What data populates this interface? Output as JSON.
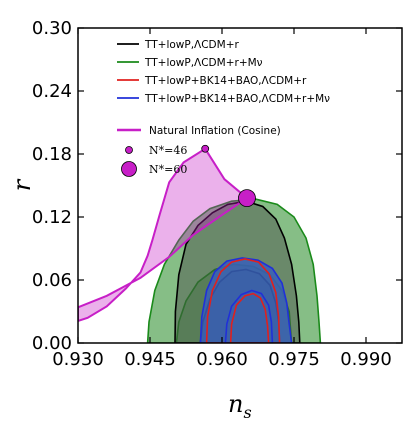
{
  "chart_data": {
    "type": "area",
    "xlabel": "n_s",
    "ylabel": "r",
    "xlim": [
      0.93,
      0.9975
    ],
    "ylim": [
      0.0,
      0.3
    ],
    "xticks": [
      "0.930",
      "0.945",
      "0.960",
      "0.975",
      "0.990"
    ],
    "xtick_values": [
      0.93,
      0.945,
      0.96,
      0.975,
      0.99
    ],
    "yticks": [
      "0.00",
      "0.06",
      "0.12",
      "0.18",
      "0.24",
      "0.30"
    ],
    "ytick_values": [
      0.0,
      0.06,
      0.12,
      0.18,
      0.24,
      0.3
    ],
    "grid": false,
    "legend_position": "top-left",
    "legend": [
      {
        "label": "TT+lowP,ΛCDM+r",
        "color": "#000000"
      },
      {
        "label": "TT+lowP,ΛCDM+r+Mν",
        "color": "#1a8a1a"
      },
      {
        "label": "TT+lowP+BK14+BAO,ΛCDM+r",
        "color": "#e0201e"
      },
      {
        "label": "TT+lowP+BK14+BAO,ΛCDM+r+Mν",
        "color": "#2030d8"
      }
    ],
    "inflation_legend": {
      "label": "Natural Inflation (Cosine)",
      "color": "#c71fc7",
      "points": [
        {
          "label": "N*=46",
          "ns": 0.9565,
          "r": 0.185
        },
        {
          "label": "N*=60",
          "ns": 0.9652,
          "r": 0.138
        }
      ]
    },
    "contours": [
      {
        "name": "green-outer",
        "color": "#1a8a1a",
        "fill": "#5ea85e",
        "opacity": 0.75,
        "points": [
          [
            0.9445,
            0.0
          ],
          [
            0.9448,
            0.02
          ],
          [
            0.946,
            0.05
          ],
          [
            0.948,
            0.075
          ],
          [
            0.951,
            0.098
          ],
          [
            0.954,
            0.116
          ],
          [
            0.9575,
            0.128
          ],
          [
            0.962,
            0.135
          ],
          [
            0.967,
            0.137
          ],
          [
            0.9715,
            0.132
          ],
          [
            0.975,
            0.12
          ],
          [
            0.9775,
            0.1
          ],
          [
            0.979,
            0.075
          ],
          [
            0.9798,
            0.045
          ],
          [
            0.9802,
            0.02
          ],
          [
            0.9805,
            0.0
          ]
        ]
      },
      {
        "name": "green-inner",
        "color": "#1a8a1a",
        "fill": "#4e9a4e",
        "opacity": 0.6,
        "points": [
          [
            0.9505,
            0.0
          ],
          [
            0.951,
            0.02
          ],
          [
            0.9525,
            0.04
          ],
          [
            0.955,
            0.058
          ],
          [
            0.9585,
            0.07
          ],
          [
            0.9625,
            0.075
          ],
          [
            0.9665,
            0.073
          ],
          [
            0.97,
            0.065
          ],
          [
            0.9725,
            0.05
          ],
          [
            0.974,
            0.03
          ],
          [
            0.9745,
            0.0
          ]
        ]
      },
      {
        "name": "black-outer",
        "color": "#000000",
        "fill": "#4a4a4a",
        "opacity": 0.45,
        "points": [
          [
            0.9502,
            0.0
          ],
          [
            0.9503,
            0.03
          ],
          [
            0.951,
            0.065
          ],
          [
            0.9525,
            0.094
          ],
          [
            0.955,
            0.112
          ],
          [
            0.958,
            0.124
          ],
          [
            0.9612,
            0.132
          ],
          [
            0.965,
            0.135
          ],
          [
            0.9685,
            0.13
          ],
          [
            0.9712,
            0.118
          ],
          [
            0.973,
            0.1
          ],
          [
            0.9745,
            0.075
          ],
          [
            0.9755,
            0.045
          ],
          [
            0.976,
            0.02
          ],
          [
            0.9762,
            0.0
          ]
        ]
      },
      {
        "name": "black-inner",
        "color": "#000000",
        "fill": "#3a3a3a",
        "opacity": 0.35,
        "points": [
          [
            0.9555,
            0.0
          ],
          [
            0.956,
            0.02
          ],
          [
            0.9575,
            0.042
          ],
          [
            0.9595,
            0.058
          ],
          [
            0.962,
            0.068
          ],
          [
            0.965,
            0.07
          ],
          [
            0.9678,
            0.066
          ],
          [
            0.97,
            0.055
          ],
          [
            0.9712,
            0.038
          ],
          [
            0.9718,
            0.02
          ],
          [
            0.972,
            0.0
          ]
        ]
      },
      {
        "name": "blue-outer",
        "color": "#2030d8",
        "fill": "#3860b8",
        "opacity": 0.85,
        "points": [
          [
            0.9555,
            0.0
          ],
          [
            0.9558,
            0.025
          ],
          [
            0.9568,
            0.05
          ],
          [
            0.9585,
            0.068
          ],
          [
            0.961,
            0.078
          ],
          [
            0.9642,
            0.081
          ],
          [
            0.9675,
            0.079
          ],
          [
            0.9705,
            0.071
          ],
          [
            0.9725,
            0.057
          ],
          [
            0.9735,
            0.038
          ],
          [
            0.974,
            0.018
          ],
          [
            0.9745,
            0.0
          ]
        ]
      },
      {
        "name": "red-outer",
        "color": "#e0201e",
        "fill": "none",
        "opacity": 1,
        "points": [
          [
            0.9568,
            0.0
          ],
          [
            0.957,
            0.025
          ],
          [
            0.958,
            0.05
          ],
          [
            0.9598,
            0.068
          ],
          [
            0.962,
            0.077
          ],
          [
            0.9648,
            0.08
          ],
          [
            0.9676,
            0.077
          ],
          [
            0.9698,
            0.066
          ],
          [
            0.9712,
            0.048
          ],
          [
            0.9718,
            0.025
          ],
          [
            0.972,
            0.0
          ]
        ]
      },
      {
        "name": "blue-inner",
        "color": "#2030d8",
        "fill": "none",
        "opacity": 1,
        "points": [
          [
            0.9607,
            0.0
          ],
          [
            0.961,
            0.018
          ],
          [
            0.962,
            0.035
          ],
          [
            0.964,
            0.046
          ],
          [
            0.9662,
            0.05
          ],
          [
            0.9682,
            0.047
          ],
          [
            0.9697,
            0.036
          ],
          [
            0.9703,
            0.02
          ],
          [
            0.9705,
            0.0
          ]
        ]
      },
      {
        "name": "red-inner",
        "color": "#e0201e",
        "fill": "none",
        "opacity": 1,
        "points": [
          [
            0.9618,
            0.0
          ],
          [
            0.962,
            0.018
          ],
          [
            0.963,
            0.036
          ],
          [
            0.9648,
            0.045
          ],
          [
            0.9665,
            0.047
          ],
          [
            0.968,
            0.043
          ],
          [
            0.969,
            0.032
          ],
          [
            0.9695,
            0.016
          ],
          [
            0.9697,
            0.0
          ]
        ]
      }
    ],
    "inflation_band": [
      [
        0.93,
        0.034
      ],
      [
        0.936,
        0.045
      ],
      [
        0.943,
        0.062
      ],
      [
        0.949,
        0.082
      ],
      [
        0.954,
        0.103
      ],
      [
        0.96,
        0.122
      ],
      [
        0.9652,
        0.138
      ],
      [
        0.9605,
        0.156
      ],
      [
        0.9565,
        0.185
      ],
      [
        0.952,
        0.172
      ],
      [
        0.949,
        0.153
      ],
      [
        0.947,
        0.122
      ],
      [
        0.9455,
        0.098
      ],
      [
        0.9445,
        0.083
      ],
      [
        0.943,
        0.067
      ],
      [
        0.94,
        0.052
      ],
      [
        0.936,
        0.035
      ],
      [
        0.932,
        0.024
      ],
      [
        0.93,
        0.021
      ]
    ]
  }
}
